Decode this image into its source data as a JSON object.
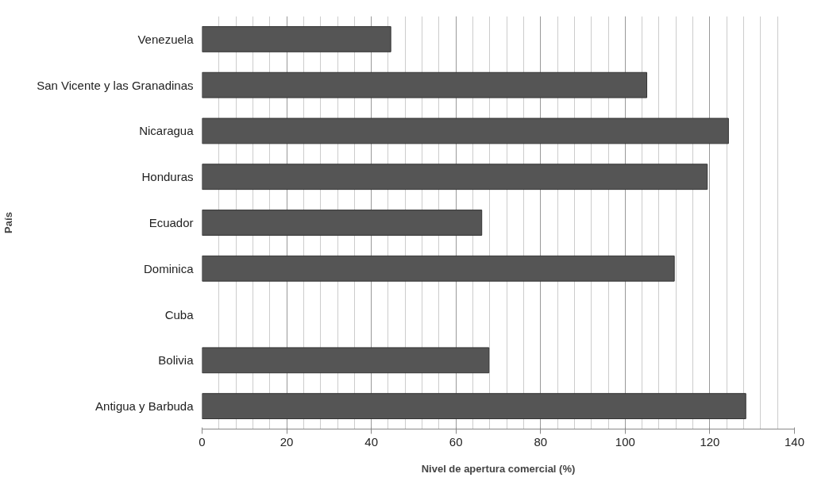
{
  "chart_data": {
    "type": "bar",
    "orientation": "horizontal",
    "xlabel": "Nivel de apertura comercial (%)",
    "ylabel": "País",
    "categories": [
      "Venezuela",
      "San Vicente y las Granadinas",
      "Nicaragua",
      "Honduras",
      "Ecuador",
      "Dominica",
      "Cuba",
      "Bolivia",
      "Antigua y Barbuda"
    ],
    "values": [
      44.6,
      105.1,
      124.4,
      119.4,
      66.1,
      111.6,
      null,
      67.8,
      128.5
    ],
    "color": "#555555",
    "xlim": [
      0,
      140
    ],
    "xticks": [
      0,
      20,
      40,
      60,
      80,
      100,
      120,
      140
    ],
    "grid": "x"
  }
}
